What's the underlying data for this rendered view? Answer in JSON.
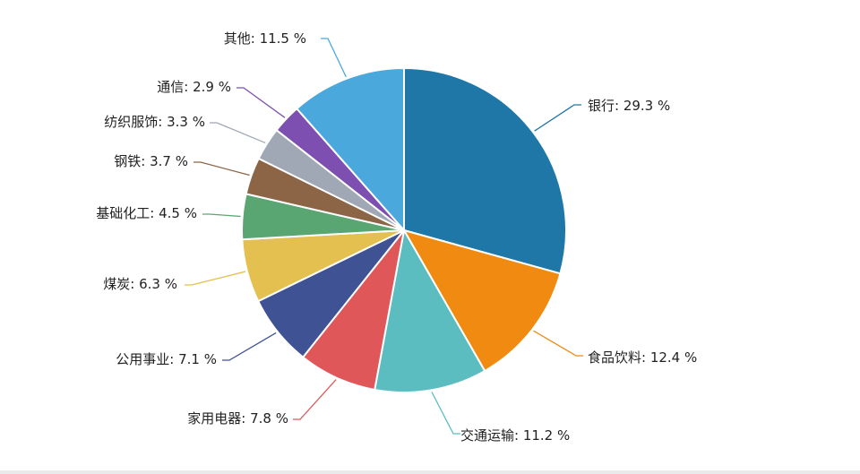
{
  "chart_data": {
    "type": "pie",
    "title": "",
    "slices": [
      {
        "label": "银行",
        "value": 29.3,
        "display": "29.3 %",
        "color": "#1f77a8"
      },
      {
        "label": "食品饮料",
        "value": 12.4,
        "display": "12.4 %",
        "color": "#f08a10"
      },
      {
        "label": "交通运输",
        "value": 11.2,
        "display": "11.2 %",
        "color": "#5bbdc0"
      },
      {
        "label": "家用电器",
        "value": 7.8,
        "display": "7.8 %",
        "color": "#e0575a"
      },
      {
        "label": "公用事业",
        "value": 7.1,
        "display": "7.1 %",
        "color": "#3f5293"
      },
      {
        "label": "煤炭",
        "value": 6.3,
        "display": "6.3 %",
        "color": "#e3c04f"
      },
      {
        "label": "基础化工",
        "value": 4.5,
        "display": "4.5 %",
        "color": "#5aa672"
      },
      {
        "label": "钢铁",
        "value": 3.7,
        "display": "3.7 %",
        "color": "#8b6546"
      },
      {
        "label": "纺织服饰",
        "value": 3.3,
        "display": "3.3 %",
        "color": "#9fa8b4"
      },
      {
        "label": "通信",
        "value": 2.9,
        "display": "2.9 %",
        "color": "#7c4fb0"
      },
      {
        "label": "其他",
        "value": 11.5,
        "display": "11.5 %",
        "color": "#4ba8dc"
      }
    ]
  }
}
